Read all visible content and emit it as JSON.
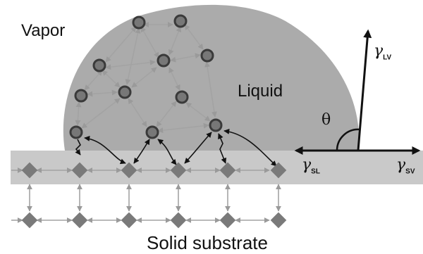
{
  "labels": {
    "vapor": "Vapor",
    "liquid": "Liquid",
    "solid": "Solid substrate",
    "theta": "θ"
  },
  "tensions": {
    "lv": {
      "symbol": "γ",
      "sub": "LV"
    },
    "sl": {
      "symbol": "γ",
      "sub": "SL"
    },
    "sv": {
      "symbol": "γ",
      "sub": "SV"
    }
  },
  "colors": {
    "liquid": "#ababab",
    "substrate": "#c9c9c9",
    "molecule_fill": "#777777",
    "molecule_ring": "#3a3a3a",
    "atom": "#7a7a7a",
    "arrow_light": "#9a9a9a",
    "arrow_dark": "#111111"
  }
}
